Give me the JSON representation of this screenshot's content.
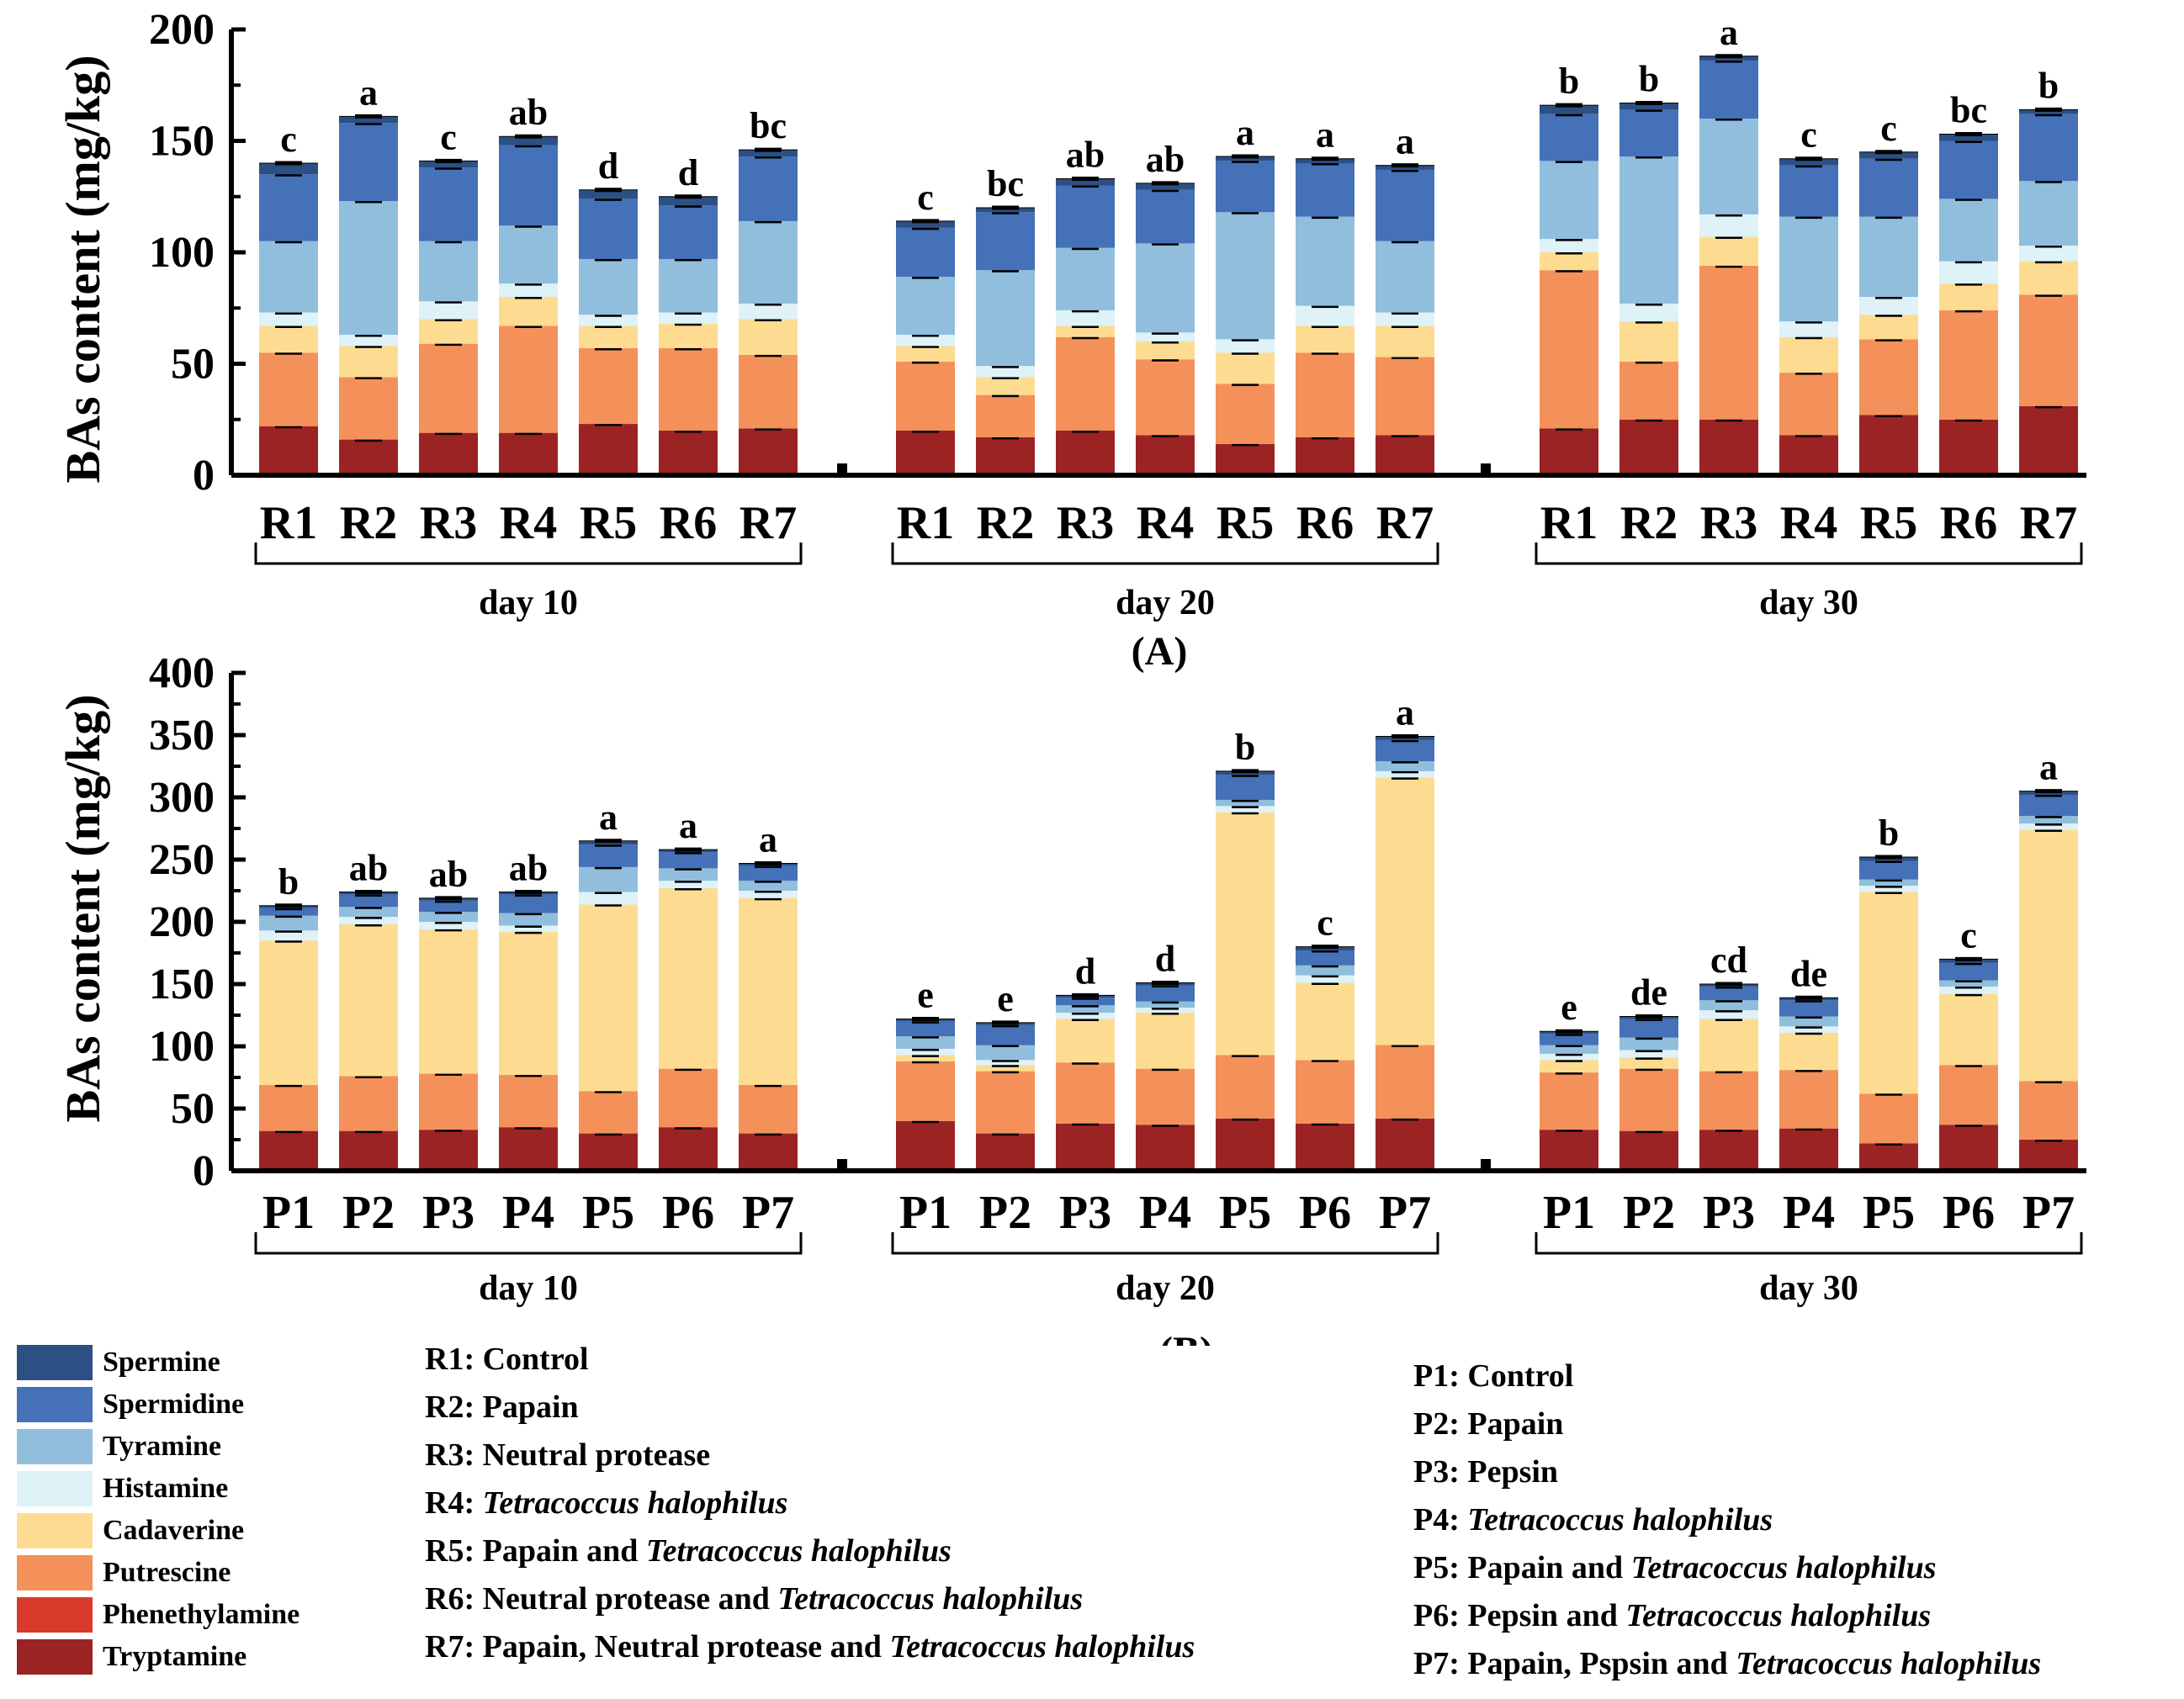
{
  "compounds": [
    {
      "name": "Tryptamine",
      "color": "#9b2323"
    },
    {
      "name": "Phenethylamine",
      "color": "#d93a2b"
    },
    {
      "name": "Putrescine",
      "color": "#f4915a"
    },
    {
      "name": "Cadaverine",
      "color": "#fddc92"
    },
    {
      "name": "Histamine",
      "color": "#def2f8"
    },
    {
      "name": "Tyramine",
      "color": "#91bedd"
    },
    {
      "name": "Spermidine",
      "color": "#4471b7"
    },
    {
      "name": "Spermine",
      "color": "#2c4f84"
    }
  ],
  "legend_order": [
    "Spermine",
    "Spermidine",
    "Tyramine",
    "Histamine",
    "Cadaverine",
    "Putrescine",
    "Phenethylamine",
    "Tryptamine"
  ],
  "panel_labels": {
    "A": "(A)",
    "B": "(B)"
  },
  "r_descriptions": [
    {
      "code": "R1:",
      "text": "Control",
      "italic": ""
    },
    {
      "code": "R2:",
      "text": "Papain",
      "italic": ""
    },
    {
      "code": "R3:",
      "text": "Neutral protease",
      "italic": ""
    },
    {
      "code": "R4:",
      "text": "",
      "italic": "Tetracoccus halophilus"
    },
    {
      "code": "R5:",
      "text": "Papain and",
      "italic": "Tetracoccus halophilus"
    },
    {
      "code": "R6:",
      "text": "Neutral protease and",
      "italic": "Tetracoccus halophilus"
    },
    {
      "code": "R7:",
      "text": "Papain, Neutral protease and",
      "italic": "Tetracoccus halophilus"
    }
  ],
  "p_descriptions": [
    {
      "code": "P1:",
      "text": "Control",
      "italic": ""
    },
    {
      "code": "P2:",
      "text": "Papain",
      "italic": ""
    },
    {
      "code": "P3:",
      "text": "Pepsin",
      "italic": ""
    },
    {
      "code": "P4:",
      "text": "",
      "italic": "Tetracoccus halophilus"
    },
    {
      "code": "P5:",
      "text": "Papain and",
      "italic": "Tetracoccus halophilus"
    },
    {
      "code": "P6:",
      "text": "Pepsin and",
      "italic": "Tetracoccus halophilus"
    },
    {
      "code": "P7:",
      "text": "Papain, Pspsin and",
      "italic": "Tetracoccus halophilus"
    }
  ],
  "chart_data": [
    {
      "id": "A",
      "type": "bar",
      "stacked": true,
      "ylabel": "BAs content (mg/kg)",
      "ylim": [
        0,
        200
      ],
      "yticks": [
        0,
        50,
        100,
        150,
        200
      ],
      "groups": [
        {
          "label": "day 10",
          "categories": [
            "R1",
            "R2",
            "R3",
            "R4",
            "R5",
            "R6",
            "R7"
          ],
          "letters": [
            "c",
            "a",
            "c",
            "ab",
            "d",
            "d",
            "bc"
          ],
          "stacks": [
            [
              22,
              0,
              33,
              12,
              6,
              32,
              30,
              5
            ],
            [
              16,
              0,
              28,
              14,
              5,
              60,
              35,
              3
            ],
            [
              19,
              0,
              40,
              11,
              8,
              27,
              33,
              3
            ],
            [
              19,
              0,
              48,
              13,
              6,
              26,
              36,
              4
            ],
            [
              23,
              0,
              34,
              10,
              5,
              25,
              27,
              4
            ],
            [
              20,
              0,
              37,
              11,
              5,
              24,
              24,
              4
            ],
            [
              21,
              0,
              33,
              16,
              7,
              37,
              29,
              3
            ]
          ]
        },
        {
          "label": "day 20",
          "categories": [
            "R1",
            "R2",
            "R3",
            "R4",
            "R5",
            "R6",
            "R7"
          ],
          "letters": [
            "c",
            "bc",
            "ab",
            "ab",
            "a",
            "a",
            "a"
          ],
          "stacks": [
            [
              20,
              0,
              31,
              7,
              5,
              26,
              22,
              3
            ],
            [
              17,
              0,
              19,
              8,
              5,
              43,
              26,
              2
            ],
            [
              20,
              0,
              42,
              5,
              7,
              28,
              28,
              3
            ],
            [
              18,
              0,
              34,
              8,
              4,
              40,
              24,
              3
            ],
            [
              14,
              0,
              27,
              14,
              6,
              57,
              23,
              2
            ],
            [
              17,
              0,
              38,
              12,
              9,
              40,
              24,
              2
            ],
            [
              18,
              0,
              35,
              14,
              6,
              32,
              32,
              2
            ]
          ]
        },
        {
          "label": "day 30",
          "categories": [
            "R1",
            "R2",
            "R3",
            "R4",
            "R5",
            "R6",
            "R7"
          ],
          "letters": [
            "b",
            "b",
            "a",
            "c",
            "c",
            "bc",
            "b"
          ],
          "stacks": [
            [
              21,
              0,
              71,
              8,
              6,
              35,
              21,
              4
            ],
            [
              25,
              0,
              26,
              18,
              8,
              66,
              21,
              3
            ],
            [
              25,
              0,
              69,
              13,
              10,
              43,
              26,
              2
            ],
            [
              18,
              0,
              28,
              16,
              7,
              47,
              23,
              3
            ],
            [
              27,
              0,
              34,
              11,
              8,
              36,
              26,
              3
            ],
            [
              25,
              0,
              49,
              12,
              10,
              28,
              26,
              3
            ],
            [
              31,
              0,
              50,
              15,
              7,
              29,
              30,
              2
            ]
          ]
        }
      ]
    },
    {
      "id": "B",
      "type": "bar",
      "stacked": true,
      "ylabel": "BAs content (mg/kg)",
      "ylim": [
        0,
        400
      ],
      "yticks": [
        0,
        50,
        100,
        150,
        200,
        250,
        300,
        350,
        400
      ],
      "groups": [
        {
          "label": "day 10",
          "categories": [
            "P1",
            "P2",
            "P3",
            "P4",
            "P5",
            "P6",
            "P7"
          ],
          "letters": [
            "b",
            "ab",
            "ab",
            "ab",
            "a",
            "a",
            "a"
          ],
          "stacks": [
            [
              32,
              0,
              37,
              116,
              8,
              12,
              6,
              2
            ],
            [
              32,
              0,
              44,
              122,
              6,
              8,
              10,
              2
            ],
            [
              33,
              0,
              45,
              116,
              6,
              8,
              9,
              2
            ],
            [
              35,
              0,
              42,
              115,
              5,
              10,
              15,
              2
            ],
            [
              30,
              0,
              34,
              150,
              10,
              20,
              18,
              3
            ],
            [
              35,
              0,
              47,
              145,
              6,
              10,
              13,
              2
            ],
            [
              30,
              0,
              39,
              150,
              6,
              8,
              12,
              2
            ]
          ]
        },
        {
          "label": "day 20",
          "categories": [
            "P1",
            "P2",
            "P3",
            "P4",
            "P5",
            "P6",
            "P7"
          ],
          "letters": [
            "e",
            "e",
            "d",
            "d",
            "b",
            "c",
            "a"
          ],
          "stacks": [
            [
              40,
              0,
              48,
              5,
              5,
              10,
              12,
              2
            ],
            [
              30,
              0,
              50,
              5,
              4,
              12,
              16,
              2
            ],
            [
              38,
              0,
              49,
              35,
              5,
              6,
              6,
              2
            ],
            [
              37,
              0,
              45,
              45,
              4,
              5,
              13,
              2
            ],
            [
              42,
              0,
              51,
              195,
              5,
              5,
              20,
              3
            ],
            [
              38,
              0,
              51,
              62,
              6,
              8,
              12,
              3
            ],
            [
              42,
              0,
              59,
              215,
              5,
              8,
              17,
              3
            ]
          ]
        },
        {
          "label": "day 30",
          "categories": [
            "P1",
            "P2",
            "P3",
            "P4",
            "P5",
            "P6",
            "P7"
          ],
          "letters": [
            "e",
            "de",
            "cd",
            "de",
            "b",
            "c",
            "a"
          ],
          "stacks": [
            [
              33,
              0,
              46,
              10,
              5,
              7,
              9,
              2
            ],
            [
              32,
              0,
              50,
              9,
              6,
              10,
              15,
              2
            ],
            [
              33,
              0,
              47,
              42,
              7,
              8,
              11,
              2
            ],
            [
              34,
              0,
              47,
              30,
              5,
              8,
              13,
              2
            ],
            [
              22,
              0,
              40,
              162,
              5,
              5,
              15,
              3
            ],
            [
              37,
              0,
              48,
              57,
              6,
              5,
              14,
              3
            ],
            [
              25,
              0,
              47,
              202,
              5,
              6,
              17,
              3
            ]
          ]
        }
      ]
    }
  ]
}
